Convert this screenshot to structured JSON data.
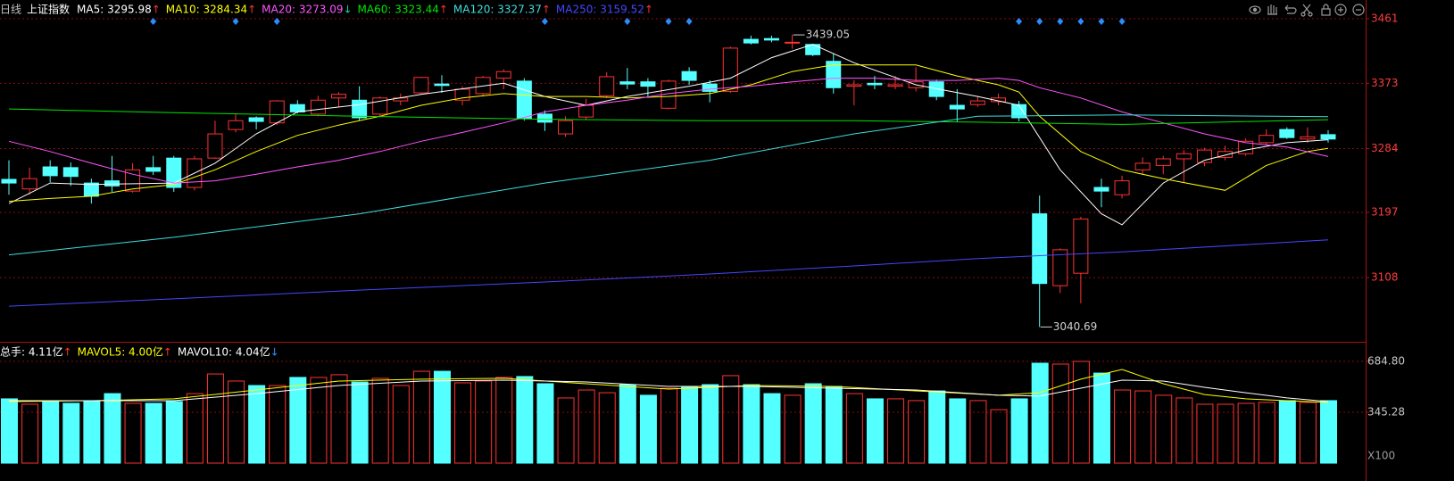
{
  "chart_data": [
    {
      "type": "candlestick",
      "period": "日线",
      "title": "上证指数",
      "up_color": "#ff3232",
      "down_color": "#54ffff",
      "open": [
        3242,
        3229,
        3259,
        3258,
        3237,
        3240,
        3226,
        3258,
        3271,
        3231,
        3271,
        3310,
        3326,
        3319,
        3344,
        3331,
        3353,
        3350,
        3331,
        3349,
        3360,
        3372,
        3350,
        3359,
        3380,
        3376,
        3331,
        3304,
        3327,
        3356,
        3375,
        3375,
        3339,
        3389,
        3372,
        3362,
        3433,
        3434,
        3428,
        3426,
        3403,
        3369,
        3373,
        3369,
        3367,
        3375,
        3343,
        3344,
        3348,
        3344,
        3195,
        3097,
        3114,
        3231,
        3221,
        3255,
        3261,
        3270,
        3265,
        3272,
        3277,
        3292,
        3310,
        3297,
        3303
      ],
      "high": [
        3268,
        3258,
        3268,
        3265,
        3243,
        3274,
        3264,
        3274,
        3274,
        3274,
        3322,
        3331,
        3328,
        3350,
        3350,
        3356,
        3361,
        3369,
        3355,
        3359,
        3382,
        3384,
        3369,
        3383,
        3392,
        3380,
        3336,
        3328,
        3352,
        3388,
        3394,
        3380,
        3378,
        3395,
        3377,
        3423,
        3438,
        3438,
        3439.05,
        3427,
        3414,
        3377,
        3383,
        3383,
        3395,
        3378,
        3365,
        3355,
        3359,
        3349,
        3220,
        3148,
        3191,
        3243,
        3247,
        3272,
        3274,
        3282,
        3285,
        3288,
        3298,
        3310,
        3313,
        3313,
        3309
      ],
      "low": [
        3221,
        3221,
        3238,
        3233,
        3209,
        3225,
        3224,
        3248,
        3225,
        3227,
        3270,
        3306,
        3310,
        3316,
        3332,
        3328,
        3341,
        3322,
        3328,
        3343,
        3358,
        3360,
        3343,
        3355,
        3365,
        3322,
        3308,
        3300,
        3324,
        3353,
        3365,
        3355,
        3338,
        3371,
        3347,
        3360,
        3426,
        3429,
        3420,
        3410,
        3359,
        3343,
        3365,
        3365,
        3362,
        3350,
        3320,
        3341,
        3343,
        3321,
        3040.69,
        3087,
        3073,
        3204,
        3216,
        3248,
        3249,
        3237,
        3260,
        3268,
        3274,
        3289,
        3297,
        3292,
        3292
      ],
      "close": [
        3237,
        3243,
        3247,
        3246,
        3219,
        3233,
        3255,
        3253,
        3231,
        3270,
        3304,
        3322,
        3321,
        3349,
        3334,
        3350,
        3358,
        3326,
        3353,
        3353,
        3381,
        3370,
        3365,
        3381,
        3389,
        3325,
        3320,
        3322,
        3343,
        3382,
        3372,
        3369,
        3376,
        3377,
        3362,
        3421,
        3428,
        3432,
        3429,
        3412,
        3367,
        3371,
        3371,
        3371,
        3375,
        3355,
        3338,
        3349,
        3353,
        3326,
        3100,
        3146,
        3188,
        3226,
        3240,
        3264,
        3270,
        3277,
        3282,
        3280,
        3294,
        3302,
        3299,
        3300,
        3297
      ],
      "ylim": [
        3020.5,
        3486.6
      ],
      "yticks": [
        3461,
        3373,
        3284,
        3197,
        3108
      ],
      "grid": true,
      "signal_markers": {
        "color": "#2a8cff",
        "indices": [
          7,
          11,
          13,
          26,
          30,
          32,
          33,
          49,
          50,
          51,
          52,
          53,
          54
        ]
      },
      "series": [
        {
          "label": "MA5: 3295.98",
          "arrow": "↑",
          "arrow_color": "#ff3030",
          "color": "#ffffff",
          "x": [
            0,
            2,
            4,
            8,
            10,
            12,
            14,
            17,
            20,
            24,
            26,
            28,
            30,
            33,
            35,
            37,
            39,
            41,
            44,
            47,
            49,
            51,
            53,
            54,
            56,
            58,
            60,
            62,
            64
          ],
          "values": [
            3209,
            3237,
            3235,
            3237,
            3264,
            3304,
            3334,
            3344,
            3358,
            3373,
            3355,
            3343,
            3355,
            3369,
            3380,
            3408,
            3426,
            3401,
            3371,
            3355,
            3343,
            3255,
            3195,
            3180,
            3237,
            3268,
            3282,
            3292,
            3295.98
          ]
        },
        {
          "label": "MA10: 3284.34",
          "arrow": "↑",
          "arrow_color": "#ff3030",
          "color": "#ffff00",
          "x": [
            0,
            2,
            4,
            6,
            8,
            10,
            12,
            14,
            16,
            18,
            20,
            22,
            24,
            26,
            28,
            30,
            32,
            34,
            36,
            38,
            40,
            42,
            44,
            46,
            48,
            49,
            50,
            52,
            54,
            56,
            59,
            61,
            63,
            64
          ],
          "values": [
            3212,
            3216,
            3219,
            3229,
            3235,
            3255,
            3280,
            3302,
            3316,
            3328,
            3343,
            3353,
            3359,
            3355,
            3355,
            3353,
            3355,
            3359,
            3371,
            3389,
            3398,
            3398,
            3398,
            3383,
            3371,
            3361,
            3328,
            3280,
            3255,
            3243,
            3227,
            3261,
            3280,
            3284.34
          ]
        },
        {
          "label": "MA20: 3273.09",
          "arrow": "↓",
          "arrow_color": "#00d8a0",
          "color": "#ff55ff",
          "x": [
            0,
            2,
            4,
            6,
            8,
            10,
            12,
            14,
            16,
            18,
            20,
            22,
            24,
            26,
            28,
            30,
            32,
            34,
            36,
            38,
            40,
            42,
            44,
            46,
            48,
            49,
            50,
            52,
            54,
            56,
            58,
            60,
            62,
            64
          ],
          "values": [
            3294,
            3280,
            3264,
            3249,
            3237,
            3240,
            3249,
            3259,
            3268,
            3280,
            3294,
            3306,
            3319,
            3334,
            3343,
            3350,
            3359,
            3365,
            3369,
            3375,
            3380,
            3380,
            3377,
            3377,
            3380,
            3377,
            3367,
            3353,
            3334,
            3319,
            3304,
            3292,
            3286,
            3273.09
          ]
        },
        {
          "label": "MA60: 3323.44",
          "arrow": "↑",
          "arrow_color": "#ff3030",
          "color": "#00e600",
          "x": [
            0,
            8,
            17,
            26,
            34,
            41,
            47,
            54,
            64
          ],
          "values": [
            3338,
            3333,
            3328,
            3324,
            3322,
            3322,
            3320,
            3317,
            3323.44
          ]
        },
        {
          "label": "MA120: 3327.37",
          "arrow": "↑",
          "arrow_color": "#ff3030",
          "color": "#3fdcdc",
          "x": [
            0,
            8,
            17,
            26,
            34,
            41,
            47,
            54,
            64
          ],
          "values": [
            3139,
            3163,
            3195,
            3237,
            3268,
            3304,
            3328,
            3330,
            3327.37
          ]
        },
        {
          "label": "MA250: 3159.52",
          "arrow": "↑",
          "arrow_color": "#ff3030",
          "color": "#4646ff",
          "x": [
            0,
            8,
            17,
            26,
            34,
            41,
            47,
            54,
            64
          ],
          "values": [
            3069,
            3079,
            3091,
            3102,
            3113,
            3124,
            3134,
            3143,
            3159.52
          ]
        }
      ]
    },
    {
      "type": "bar",
      "title": "总手: 4.11亿",
      "title_arrow": "↑",
      "title_arrow_color": "#ff3030",
      "values": [
        435,
        399,
        417,
        405,
        417,
        470,
        405,
        405,
        417,
        470,
        601,
        554,
        524,
        524,
        578,
        578,
        596,
        548,
        572,
        524,
        619,
        619,
        542,
        554,
        578,
        584,
        536,
        441,
        494,
        476,
        530,
        459,
        506,
        512,
        530,
        590,
        530,
        470,
        459,
        536,
        518,
        470,
        435,
        435,
        423,
        488,
        435,
        423,
        363,
        435,
        673,
        667,
        685,
        607,
        494,
        488,
        459,
        441,
        399,
        399,
        405,
        411,
        423,
        411,
        423
      ],
      "ylim": [
        5.7,
        804
      ],
      "yticks": [
        {
          "value": 684.8,
          "label": "684.80"
        },
        {
          "value": 345.28,
          "label": "345.28"
        }
      ],
      "unit_label": "X100",
      "grid": true,
      "series": [
        {
          "label": "MAVOL5: 4.00亿",
          "arrow": "↑",
          "arrow_color": "#ff3030",
          "color": "#ffff00",
          "x": [
            0,
            4,
            8,
            12,
            16,
            20,
            24,
            28,
            32,
            36,
            40,
            44,
            48,
            50,
            52,
            54,
            56,
            58,
            60,
            62,
            64
          ],
          "values": [
            417,
            423,
            435,
            494,
            554,
            566,
            572,
            536,
            500,
            524,
            518,
            488,
            459,
            476,
            566,
            631,
            536,
            464,
            435,
            423,
            411
          ]
        },
        {
          "label": "MAVOL10: 4.04亿",
          "arrow": "↓",
          "arrow_color": "#2a8cff",
          "color": "#ffffff",
          "x": [
            0,
            8,
            12,
            16,
            20,
            24,
            28,
            32,
            36,
            40,
            44,
            48,
            50,
            52,
            54,
            56,
            58,
            60,
            62,
            64
          ],
          "values": [
            423,
            423,
            470,
            524,
            554,
            560,
            548,
            518,
            518,
            506,
            494,
            459,
            453,
            506,
            560,
            554,
            512,
            476,
            441,
            417
          ]
        }
      ]
    }
  ]
}
